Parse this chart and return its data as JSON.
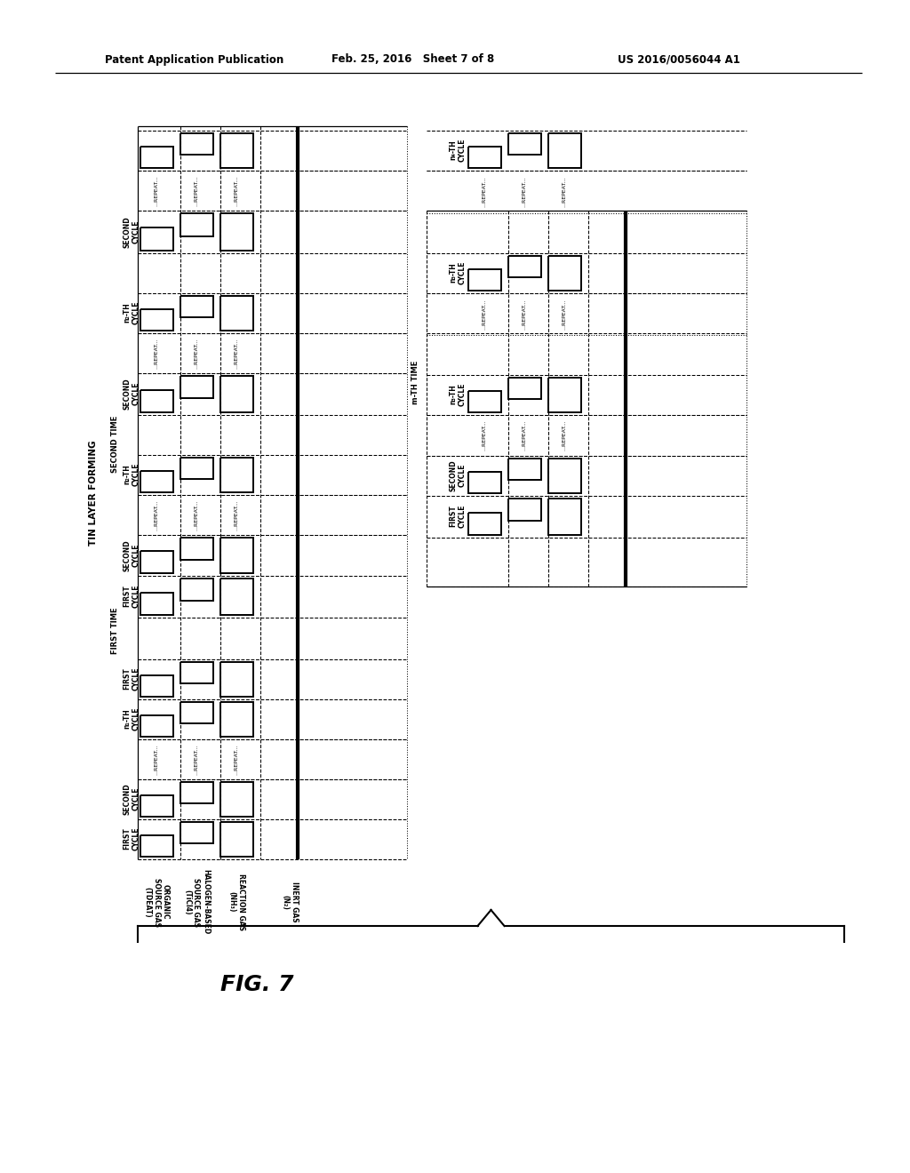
{
  "fig_w": 10.24,
  "fig_h": 13.2,
  "dpi": 100,
  "header_left": "Patent Application Publication",
  "header_center": "Feb. 25, 2016   Sheet 7 of 8",
  "header_right": "US 2016/0056044 A1",
  "fig_label": "FIG. 7",
  "diagram_title": "TIN LAYER FORMING",
  "gas_labels": [
    "ORGANIC\nSOURCE GAS\n(TDEAT)",
    "HALOGEN-BASED\nSOURCE GAS\n(TiCl4)",
    "REACTION GAS\n(NH₃)",
    "INERT GAS\n(N₂)"
  ],
  "left_time_labels": [
    "FIRST TIME",
    "SECOND TIME"
  ],
  "right_time_label": "m-TH TIME",
  "left_cycle_labels": [
    "FIRST\nCYCLE",
    "SECOND\nCYCLE",
    "n₁-TH\nCYCLE",
    "FIRST\nCYCLE",
    "FIRST\nCYCLE",
    "SECOND\nCYCLE",
    "n₂-TH\nCYCLE",
    "SECOND\nCYCLE"
  ],
  "right_cycle_labels": [
    "FIRST\nCYCLE",
    "SECOND\nCYCLE",
    "n₃-TH\nCYCLE",
    "n₄-TH\nCYCLE"
  ],
  "repeat_text": "...REPEAT...",
  "bg_color": "#ffffff"
}
